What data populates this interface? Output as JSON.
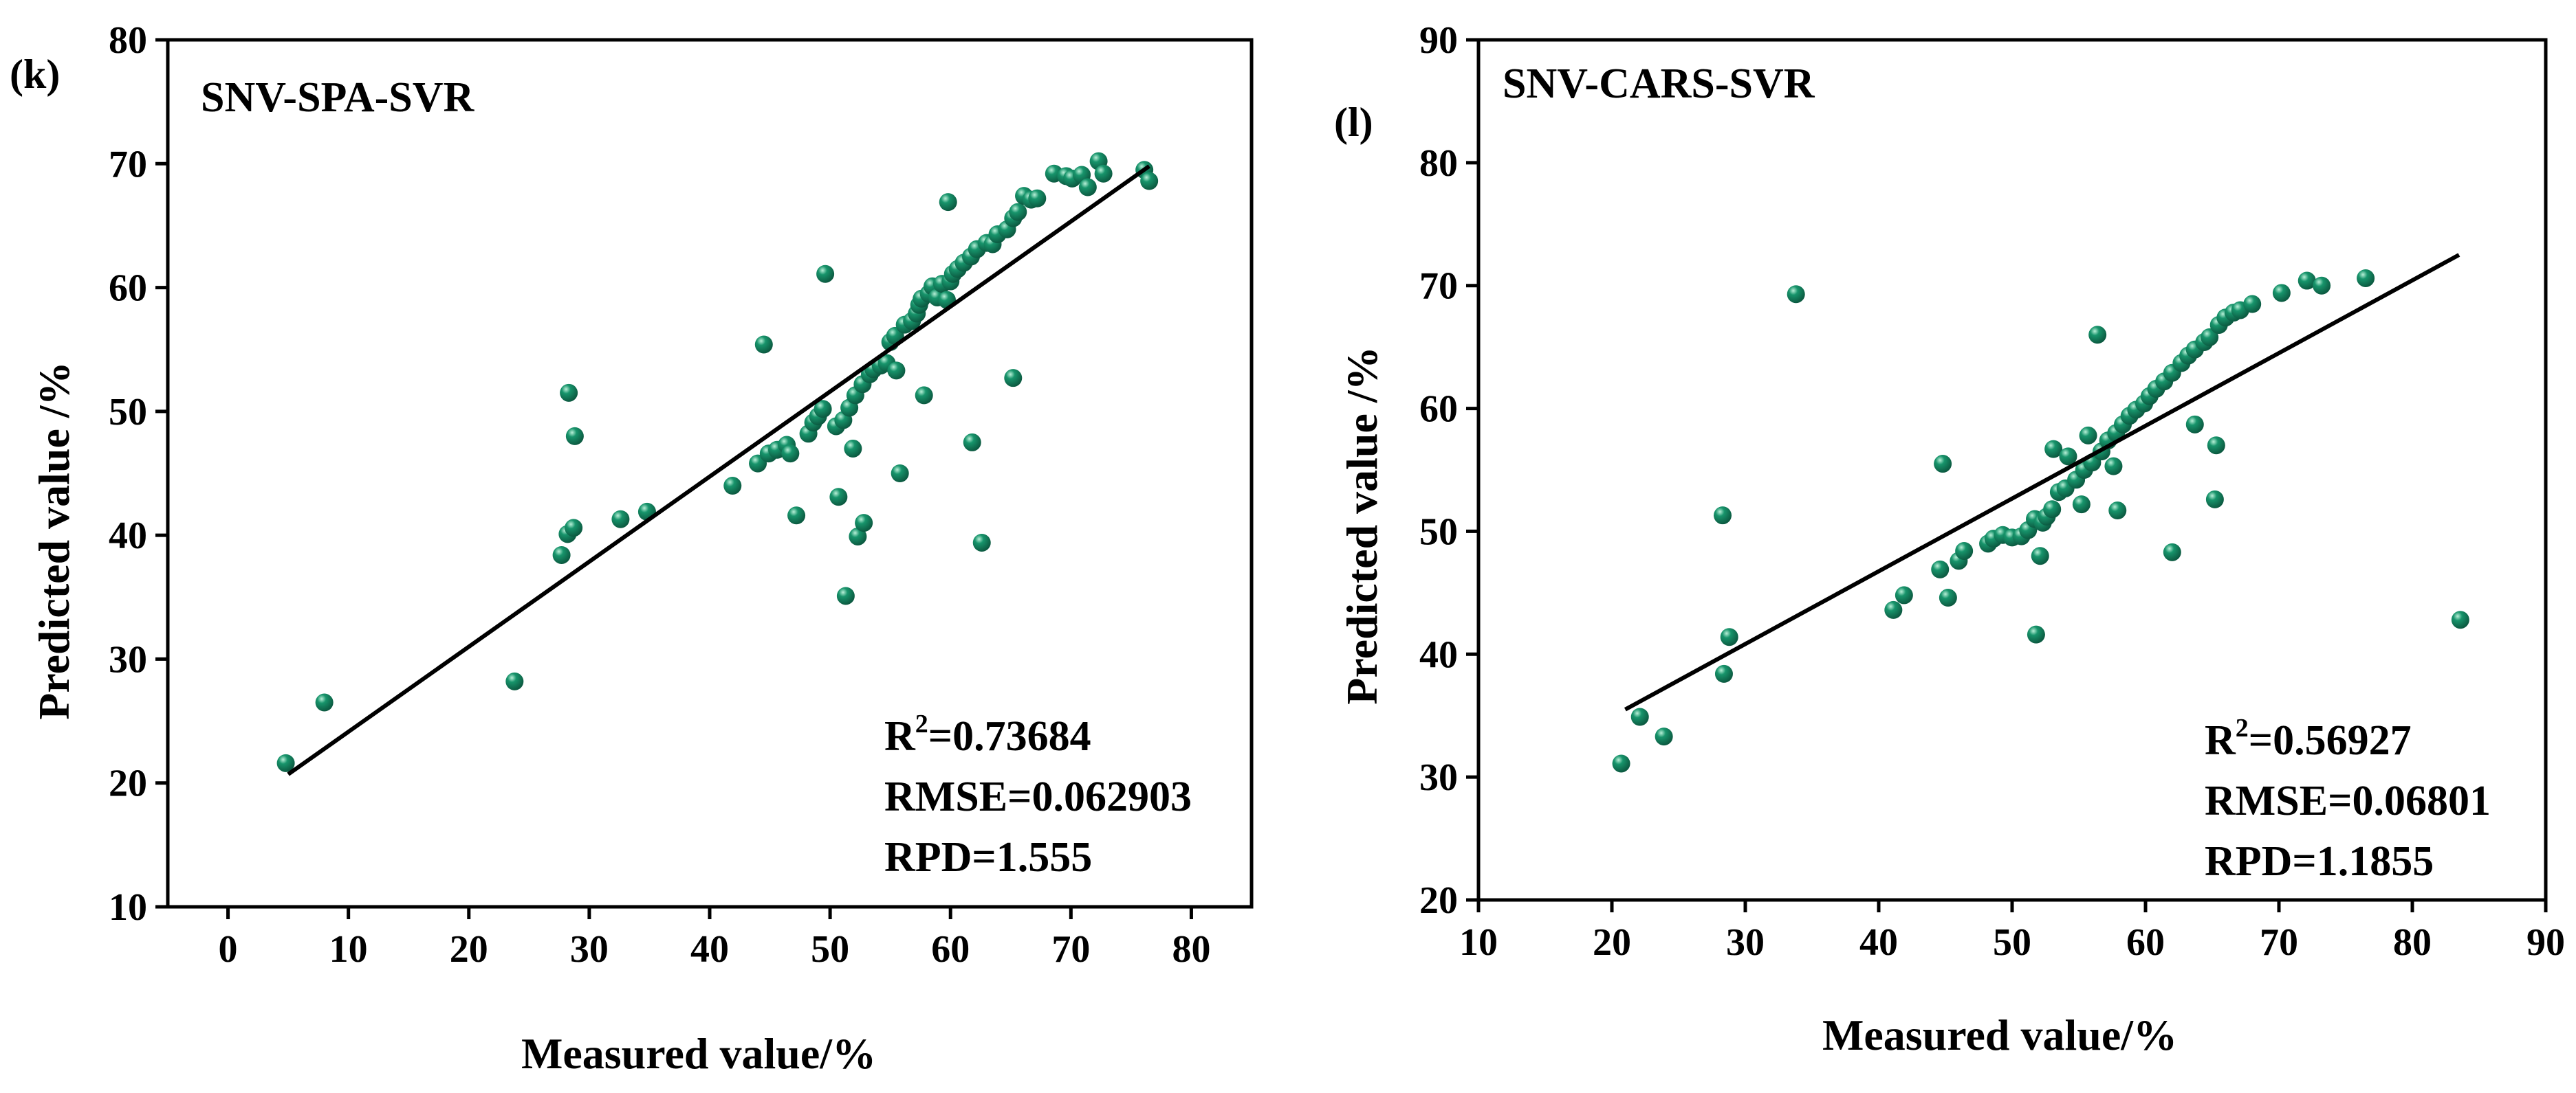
{
  "chart_data": [
    {
      "type": "scatter",
      "panel_label": "(k)",
      "title": "SNV-SPA-SVR",
      "xlabel": "Measured value/%",
      "ylabel": "Predicted value /%",
      "xlim": [
        -5,
        85
      ],
      "ylim": [
        10,
        80
      ],
      "xticks": [
        0,
        10,
        20,
        30,
        40,
        50,
        60,
        70,
        80
      ],
      "yticks": [
        10,
        20,
        30,
        40,
        50,
        60,
        70,
        80
      ],
      "marker_color": "#17946b",
      "fit_line": {
        "x": [
          5,
          76.5
        ],
        "y": [
          20.7,
          69.8
        ]
      },
      "stats": {
        "r2_prefix": "R",
        "r2_sup": "2",
        "r2_value": "=0.73684",
        "rmse": "RMSE=0.062903",
        "rpd": "RPD=1.555"
      },
      "points": [
        [
          4.8,
          21.6
        ],
        [
          8.0,
          26.5
        ],
        [
          23.8,
          28.2
        ],
        [
          27.7,
          38.4
        ],
        [
          28.2,
          40.1
        ],
        [
          28.7,
          40.6
        ],
        [
          28.3,
          51.5
        ],
        [
          28.8,
          48.0
        ],
        [
          32.6,
          41.3
        ],
        [
          34.8,
          41.9
        ],
        [
          41.9,
          44.0
        ],
        [
          44.0,
          45.8
        ],
        [
          44.9,
          46.6
        ],
        [
          45.6,
          46.9
        ],
        [
          46.4,
          47.3
        ],
        [
          46.7,
          46.6
        ],
        [
          44.5,
          55.4
        ],
        [
          47.2,
          41.6
        ],
        [
          48.2,
          48.2
        ],
        [
          48.6,
          49.1
        ],
        [
          49.0,
          49.6
        ],
        [
          49.4,
          50.2
        ],
        [
          49.6,
          61.1
        ],
        [
          50.5,
          48.8
        ],
        [
          50.7,
          43.1
        ],
        [
          51.1,
          49.3
        ],
        [
          51.6,
          50.3
        ],
        [
          51.3,
          35.1
        ],
        [
          51.9,
          47.0
        ],
        [
          52.1,
          51.3
        ],
        [
          52.3,
          39.9
        ],
        [
          52.8,
          41.0
        ],
        [
          52.7,
          52.2
        ],
        [
          53.3,
          53.0
        ],
        [
          53.6,
          53.4
        ],
        [
          54.2,
          53.7
        ],
        [
          54.7,
          53.9
        ],
        [
          55.0,
          55.6
        ],
        [
          55.4,
          56.1
        ],
        [
          55.5,
          53.3
        ],
        [
          55.8,
          45.0
        ],
        [
          56.2,
          57.0
        ],
        [
          56.8,
          57.3
        ],
        [
          57.2,
          57.9
        ],
        [
          57.4,
          58.6
        ],
        [
          57.8,
          51.3
        ],
        [
          57.6,
          59.1
        ],
        [
          58.2,
          59.5
        ],
        [
          58.5,
          60.1
        ],
        [
          58.9,
          59.2
        ],
        [
          59.3,
          60.3
        ],
        [
          59.7,
          59.0
        ],
        [
          60.0,
          60.5
        ],
        [
          60.2,
          61.1
        ],
        [
          59.8,
          66.9
        ],
        [
          60.6,
          61.5
        ],
        [
          61.1,
          62.0
        ],
        [
          61.7,
          62.5
        ],
        [
          61.8,
          47.5
        ],
        [
          62.2,
          63.1
        ],
        [
          62.6,
          39.4
        ],
        [
          63.0,
          63.6
        ],
        [
          63.5,
          63.5
        ],
        [
          63.9,
          64.3
        ],
        [
          64.7,
          64.7
        ],
        [
          65.2,
          52.7
        ],
        [
          65.2,
          65.6
        ],
        [
          65.6,
          66.1
        ],
        [
          66.1,
          67.4
        ],
        [
          66.7,
          67.1
        ],
        [
          67.2,
          67.2
        ],
        [
          68.6,
          69.2
        ],
        [
          69.6,
          69.0
        ],
        [
          70.1,
          68.8
        ],
        [
          70.9,
          69.1
        ],
        [
          71.4,
          68.1
        ],
        [
          72.3,
          70.2
        ],
        [
          72.7,
          69.2
        ],
        [
          76.1,
          69.5
        ],
        [
          76.5,
          68.6
        ]
      ]
    },
    {
      "type": "scatter",
      "panel_label": "(l)",
      "title": "SNV-CARS-SVR",
      "xlabel": "Measured value/%",
      "ylabel": "Predicted value /%",
      "xlim": [
        10,
        90
      ],
      "ylim": [
        20,
        90
      ],
      "xticks": [
        10,
        20,
        30,
        40,
        50,
        60,
        70,
        80,
        90
      ],
      "yticks": [
        20,
        30,
        40,
        50,
        60,
        70,
        80,
        90
      ],
      "marker_color": "#17946b",
      "fit_line": {
        "x": [
          21.0,
          83.5
        ],
        "y": [
          35.5,
          72.5
        ]
      },
      "stats": {
        "r2_prefix": "R",
        "r2_sup": "2",
        "r2_value": "=0.56927",
        "rmse": "RMSE=0.06801",
        "rpd": "RPD=1.1855"
      },
      "points": [
        [
          20.7,
          31.1
        ],
        [
          22.1,
          34.9
        ],
        [
          23.9,
          33.3
        ],
        [
          28.3,
          51.3
        ],
        [
          28.4,
          38.4
        ],
        [
          28.8,
          41.4
        ],
        [
          33.8,
          69.3
        ],
        [
          41.1,
          43.6
        ],
        [
          41.9,
          44.8
        ],
        [
          44.6,
          46.9
        ],
        [
          44.8,
          55.5
        ],
        [
          45.2,
          44.6
        ],
        [
          46.0,
          47.6
        ],
        [
          46.4,
          48.4
        ],
        [
          48.2,
          49.0
        ],
        [
          48.6,
          49.4
        ],
        [
          49.3,
          49.7
        ],
        [
          50.0,
          49.5
        ],
        [
          50.7,
          49.6
        ],
        [
          51.2,
          50.1
        ],
        [
          51.7,
          51.0
        ],
        [
          51.8,
          41.6
        ],
        [
          52.1,
          48.0
        ],
        [
          52.3,
          50.7
        ],
        [
          52.6,
          51.2
        ],
        [
          53.0,
          51.8
        ],
        [
          53.1,
          56.7
        ],
        [
          53.5,
          53.2
        ],
        [
          54.0,
          53.5
        ],
        [
          54.2,
          56.1
        ],
        [
          54.8,
          54.2
        ],
        [
          55.2,
          52.2
        ],
        [
          55.4,
          55.0
        ],
        [
          55.7,
          57.8
        ],
        [
          56.0,
          55.6
        ],
        [
          56.4,
          66.0
        ],
        [
          56.7,
          56.5
        ],
        [
          57.2,
          57.4
        ],
        [
          57.6,
          55.3
        ],
        [
          57.9,
          51.7
        ],
        [
          57.8,
          58.0
        ],
        [
          58.3,
          58.7
        ],
        [
          58.8,
          59.4
        ],
        [
          59.3,
          59.9
        ],
        [
          59.9,
          60.4
        ],
        [
          60.3,
          61.0
        ],
        [
          60.8,
          61.6
        ],
        [
          61.4,
          62.2
        ],
        [
          62.0,
          48.3
        ],
        [
          62.0,
          62.9
        ],
        [
          62.7,
          63.7
        ],
        [
          63.2,
          64.3
        ],
        [
          63.7,
          58.7
        ],
        [
          63.7,
          64.8
        ],
        [
          64.4,
          65.4
        ],
        [
          64.8,
          65.8
        ],
        [
          65.2,
          52.6
        ],
        [
          65.3,
          57.0
        ],
        [
          65.5,
          66.8
        ],
        [
          66.0,
          67.4
        ],
        [
          66.6,
          67.8
        ],
        [
          67.1,
          68.0
        ],
        [
          68.0,
          68.5
        ],
        [
          70.2,
          69.4
        ],
        [
          72.1,
          70.4
        ],
        [
          73.2,
          70.0
        ],
        [
          76.5,
          70.6
        ],
        [
          83.6,
          42.8
        ]
      ]
    }
  ]
}
